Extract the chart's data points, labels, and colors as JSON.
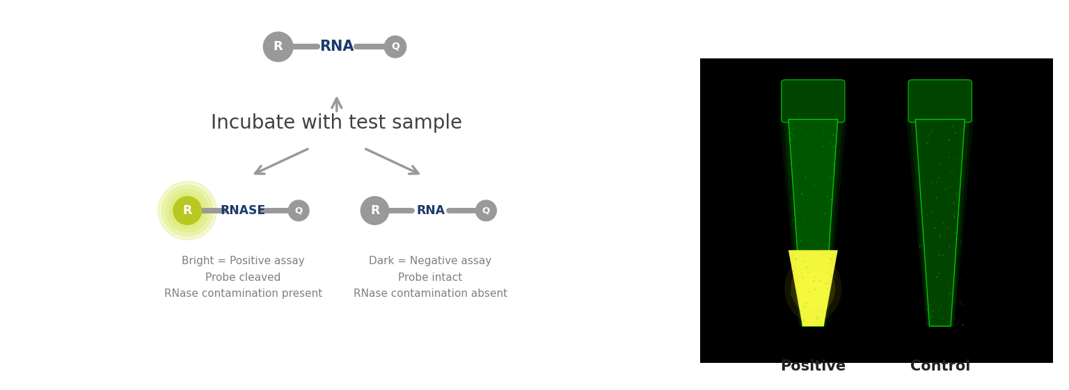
{
  "bg_color": "#ffffff",
  "gray_color": "#999999",
  "dark_blue": "#1a3a6b",
  "text_gray": "#808080",
  "yellow_green": "#c8d400",
  "bright_yellow": "#ffff00",
  "glow_color": "#e8f080",
  "title": "Incubate with test sample",
  "title_fontsize": 20,
  "left_labels": [
    "Bright = Positive assay",
    "Probe cleaved",
    "RNase contamination present"
  ],
  "right_labels": [
    "Dark = Negative assay",
    "Probe intact",
    "RNase contamination absent"
  ],
  "positive_label": "Positive",
  "control_label": "Control",
  "label_fontsize": 13,
  "sub_label_fontsize": 11,
  "probe_label_fontsize": 15
}
